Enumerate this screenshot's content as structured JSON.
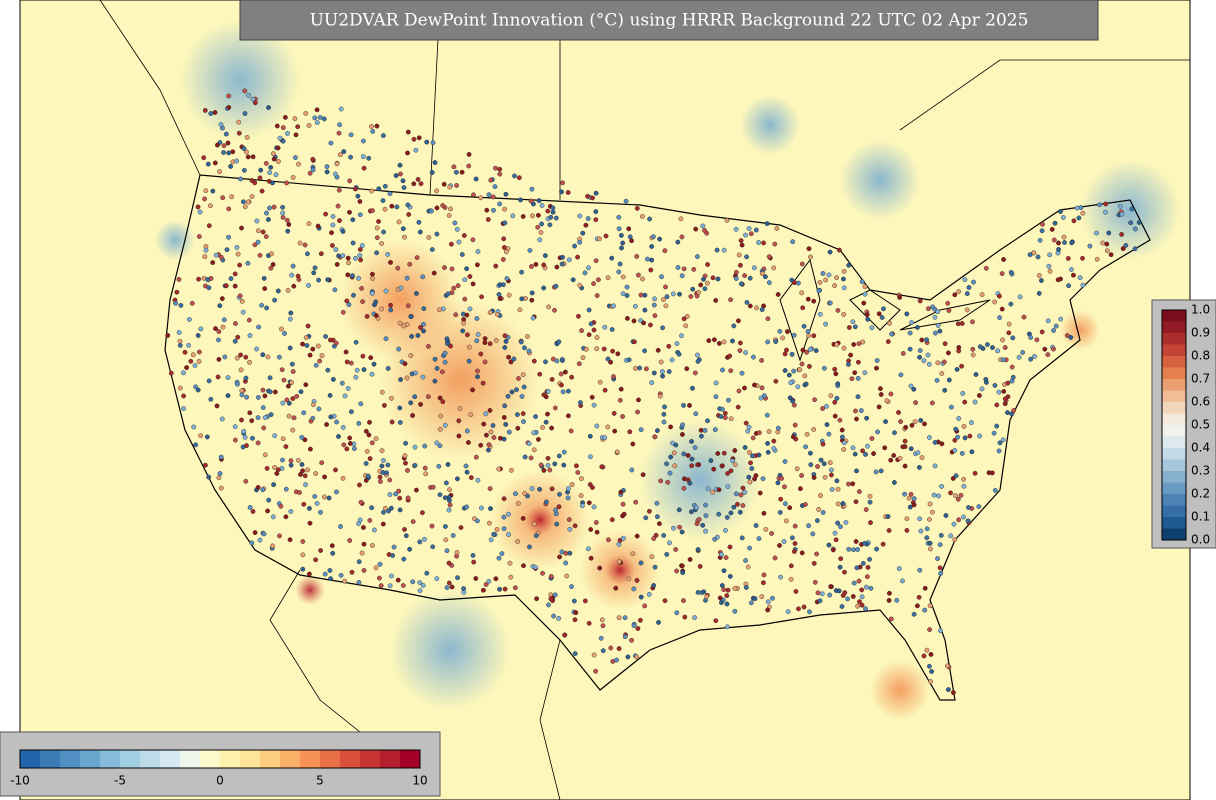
{
  "header": {
    "title": "UU2DVAR DewPoint Innovation (°C) using HRRR Background 22 UTC 02 Apr 2025"
  },
  "colorbar_bottom": {
    "labels": [
      "-10",
      "-5",
      "0",
      "5",
      "10"
    ]
  },
  "colorbar_right": {
    "labels": [
      "1.0",
      "0.9",
      "0.8",
      "0.7",
      "0.6",
      "0.5",
      "0.4",
      "0.3",
      "0.2",
      "0.1",
      "0.0"
    ]
  }
}
